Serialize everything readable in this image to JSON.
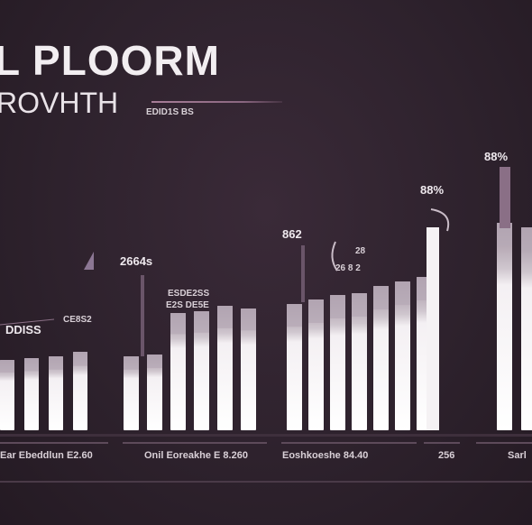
{
  "header": {
    "title": "L PLOORM",
    "subtitle": "ROVHTH",
    "sublabel": "EDID1S BS"
  },
  "colors": {
    "background": "#2e222d",
    "bar_light": "#f4f0f3",
    "bar_mid": "#b7aab6",
    "bar_dark": "#7b6478",
    "accent": "#a77e98"
  },
  "chart_data": {
    "type": "bar",
    "title": "L PLOORM",
    "subtitle": "ROVHTH",
    "groups": [
      {
        "label": "Ear Ebeddlun E2.60",
        "annotation": "DDISS",
        "annotation2": "CE8S2",
        "values": [
          78,
          80,
          82,
          87
        ]
      },
      {
        "label": "Onil Eoreakhe E 8.260",
        "annotation": "2664s",
        "annotation2": "ESDE2SS",
        "annotation3": "E2S DE5E",
        "values": [
          82,
          84,
          130,
          132,
          138,
          135
        ]
      },
      {
        "label": "Eoshkoeshe 84.40",
        "annotation": "862",
        "annotation2": "28",
        "annotation3": "26 8 2",
        "values": [
          140,
          145,
          150,
          152,
          160,
          165,
          170
        ]
      },
      {
        "label": "256",
        "annotation": "88%",
        "values": [
          225
        ]
      },
      {
        "label": "Sarl",
        "annotation": "88%",
        "values": [
          230,
          225
        ]
      }
    ],
    "ylim": [
      0,
      320
    ]
  }
}
